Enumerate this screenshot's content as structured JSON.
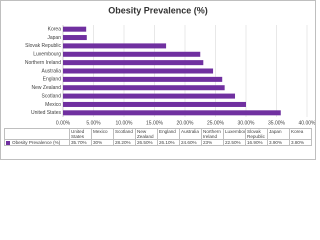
{
  "chart_data": {
    "type": "bar",
    "orientation": "horizontal",
    "title": "Obesity Prevalence (%)",
    "categories": [
      "United States",
      "Mexico",
      "Scotland",
      "New Zealand",
      "England",
      "Australia",
      "Northern Ireland",
      "Luxembourg",
      "Slovak Republic",
      "Japan",
      "Korea"
    ],
    "series": [
      {
        "name": "Obesity Prevalence (%)",
        "color": "#7030a0",
        "values": [
          35.7,
          30,
          28.2,
          26.5,
          26.1,
          24.6,
          23,
          22.5,
          16.9,
          3.9,
          3.8
        ],
        "value_labels": [
          "35.70%",
          "30%",
          "28.20%",
          "26.50%",
          "26.10%",
          "24.60%",
          "23%",
          "22.50%",
          "16.90%",
          "3.90%",
          "3.80%"
        ]
      }
    ],
    "xlim": [
      0,
      40
    ],
    "xticks": [
      {
        "value": 0,
        "label": "0.00%"
      },
      {
        "value": 5,
        "label": "5.00%"
      },
      {
        "value": 10,
        "label": "10.00%"
      },
      {
        "value": 15,
        "label": "15.00%"
      },
      {
        "value": 20,
        "label": "20.00%"
      },
      {
        "value": 25,
        "label": "25.00%"
      },
      {
        "value": 30,
        "label": "30.00%"
      },
      {
        "value": 35,
        "label": "35.00%"
      },
      {
        "value": 40,
        "label": "40.00%"
      }
    ],
    "grid": true
  }
}
